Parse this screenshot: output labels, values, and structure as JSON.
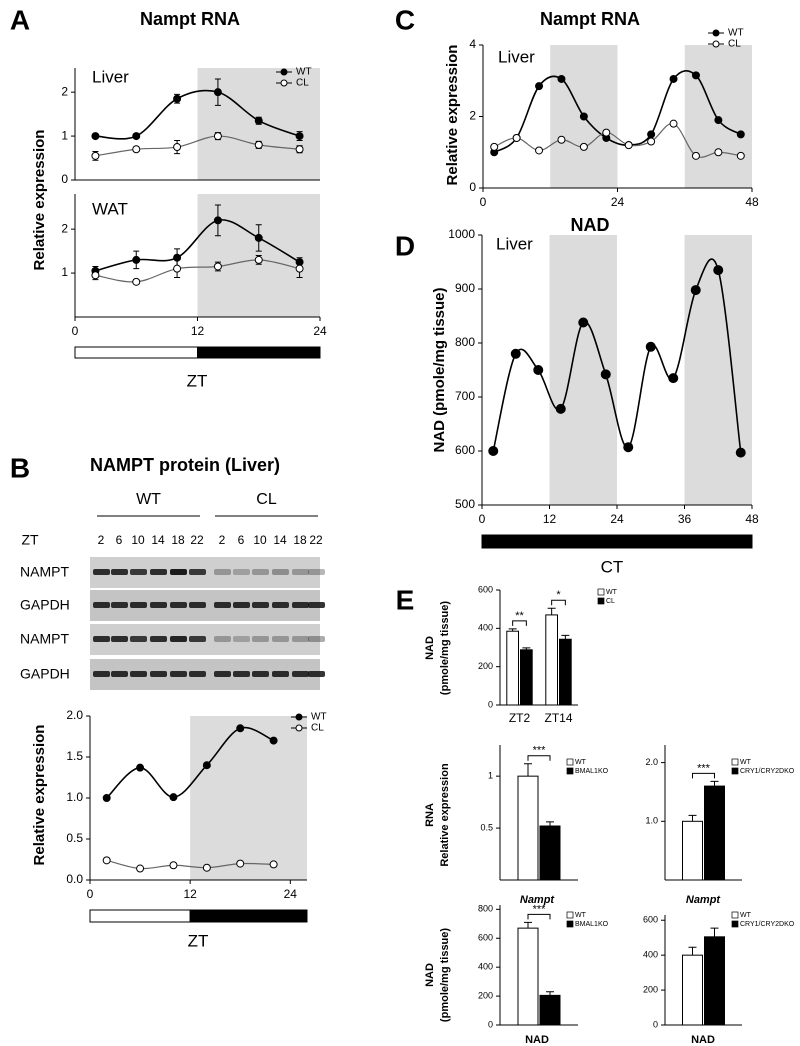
{
  "chart_data": [
    {
      "type": "line",
      "panel": "A",
      "title": "Nampt RNA",
      "annotation": "Liver",
      "ylabel": "Relative expression",
      "x": [
        2,
        6,
        10,
        14,
        18,
        22
      ],
      "xlim": [
        0,
        24
      ],
      "ylim": [
        0,
        2.55
      ],
      "yticks": [
        0,
        1,
        2
      ],
      "shade": [
        [
          12,
          24
        ]
      ],
      "smooth": true,
      "series": [
        {
          "name": "WT",
          "color": "#000000",
          "values": [
            1.0,
            1.0,
            1.85,
            2.0,
            1.35,
            1.0
          ],
          "errors": [
            0.05,
            0.05,
            0.1,
            0.3,
            0.08,
            0.1
          ]
        },
        {
          "name": "CL",
          "color": "#ffffff",
          "values": [
            0.55,
            0.7,
            0.75,
            1.0,
            0.8,
            0.7
          ],
          "errors": [
            0.1,
            0.05,
            0.15,
            0.08,
            0.08,
            0.08
          ]
        }
      ]
    },
    {
      "type": "line",
      "annotation": "WAT",
      "xlabel": "ZT",
      "x": [
        2,
        6,
        10,
        14,
        18,
        22
      ],
      "xlim": [
        0,
        24
      ],
      "xticks": [
        0,
        12,
        24
      ],
      "ylim": [
        0,
        2.8
      ],
      "yticks": [
        1,
        2
      ],
      "shade": [
        [
          12,
          24
        ]
      ],
      "light_bar": [
        [
          0,
          12
        ]
      ],
      "dark_bar": [
        [
          12,
          24
        ]
      ],
      "smooth": true,
      "series": [
        {
          "color": "#000000",
          "values": [
            1.05,
            1.3,
            1.35,
            2.2,
            1.8,
            1.25
          ],
          "errors": [
            0.1,
            0.2,
            0.2,
            0.35,
            0.3,
            0.1
          ]
        },
        {
          "color": "#ffffff",
          "values": [
            0.95,
            0.8,
            1.1,
            1.15,
            1.3,
            1.1
          ],
          "errors": [
            0.1,
            0.05,
            0.2,
            0.1,
            0.1,
            0.2
          ]
        }
      ]
    },
    {
      "type": "line",
      "ylabel": "Relative expression",
      "xlabel": "ZT",
      "x": [
        2,
        6,
        10,
        14,
        18,
        22
      ],
      "xlim": [
        0,
        26
      ],
      "xticks": [
        0,
        12,
        24
      ],
      "ylim": [
        0,
        2
      ],
      "yticks": [
        {
          "value": 0,
          "label": "0.0"
        },
        {
          "value": 0.5,
          "label": "0.5"
        },
        {
          "value": 1,
          "label": "1.0"
        },
        {
          "value": 1.5,
          "label": "1.5"
        },
        {
          "value": 2,
          "label": "2.0"
        }
      ],
      "shade": [
        [
          12,
          26
        ]
      ],
      "light_bar": [
        [
          0,
          12
        ]
      ],
      "dark_bar": [
        [
          12,
          26
        ]
      ],
      "smooth": true,
      "series": [
        {
          "name": "WT",
          "color": "#000000",
          "values": [
            1.0,
            1.37,
            1.01,
            1.4,
            1.85,
            1.7
          ]
        },
        {
          "name": "CL",
          "color": "#ffffff",
          "values": [
            0.24,
            0.14,
            0.18,
            0.15,
            0.2,
            0.19
          ]
        }
      ]
    },
    {
      "type": "line",
      "panel": "C",
      "title": "Nampt RNA",
      "annotation": "Liver",
      "ylabel": "Relative expression",
      "x": [
        2,
        6,
        10,
        14,
        18,
        22,
        26,
        30,
        34,
        38,
        42,
        46
      ],
      "xlim": [
        0,
        48
      ],
      "xticks": [
        0,
        24,
        48
      ],
      "ylim": [
        0,
        4
      ],
      "yticks": [
        0,
        2,
        4
      ],
      "shade": [
        [
          12,
          24
        ],
        [
          36,
          48
        ]
      ],
      "smooth": true,
      "series": [
        {
          "name": "WT",
          "color": "#000000",
          "values": [
            1.0,
            1.4,
            2.85,
            3.05,
            2.0,
            1.4,
            1.2,
            1.5,
            3.05,
            3.15,
            1.9,
            1.5
          ]
        },
        {
          "name": "CL",
          "color": "#ffffff",
          "values": [
            1.15,
            1.4,
            1.05,
            1.35,
            1.15,
            1.55,
            1.2,
            1.3,
            1.8,
            0.9,
            1.0,
            0.9
          ]
        }
      ]
    },
    {
      "type": "line",
      "panel": "D",
      "title": "NAD",
      "annotation": "Liver",
      "ylabel": "NAD (pmole/mg tissue)",
      "xlabel": "CT",
      "x": [
        2,
        6,
        10,
        14,
        18,
        22,
        26,
        30,
        34,
        38,
        42,
        46
      ],
      "xlim": [
        0,
        48
      ],
      "xticks": [
        0,
        12,
        24,
        36,
        48
      ],
      "ylim": [
        500,
        1000
      ],
      "yticks": [
        500,
        600,
        700,
        800,
        900,
        1000
      ],
      "shade": [
        [
          12,
          24
        ],
        [
          36,
          48
        ]
      ],
      "dark_bar": [
        [
          0,
          48
        ]
      ],
      "smooth": true,
      "color": "#000000",
      "values": [
        600,
        780,
        750,
        678,
        838,
        742,
        607,
        793,
        735,
        898,
        935,
        597
      ]
    },
    {
      "type": "bar",
      "panel": "E",
      "ylabel": [
        "NAD",
        "(pmole/mg tissue)"
      ],
      "categories": [
        "ZT2",
        "ZT14"
      ],
      "ylim": [
        0,
        600
      ],
      "yticks": [
        0,
        200,
        400,
        600
      ],
      "significance": [
        "**",
        "*"
      ],
      "series": [
        {
          "name": "WT",
          "color": "#ffffff",
          "values": [
            385,
            470
          ],
          "errors": [
            12,
            35
          ]
        },
        {
          "name": "CL",
          "color": "#000000",
          "values": [
            288,
            343
          ],
          "errors": [
            10,
            20
          ]
        }
      ]
    },
    {
      "type": "bar",
      "ylabel": [
        "RNA",
        "Relative expression"
      ],
      "xlabel": "Nampt",
      "categories": [
        null
      ],
      "ylim": [
        0,
        1.3
      ],
      "yticks": [
        0.5,
        1
      ],
      "significance": [
        "***"
      ],
      "series": [
        {
          "name": "WT",
          "color": "#ffffff",
          "values": [
            1.0
          ],
          "errors": [
            0.12
          ]
        },
        {
          "name": "BMAL1KO",
          "color": "#000000",
          "values": [
            0.52
          ],
          "errors": [
            0.04
          ]
        }
      ]
    },
    {
      "type": "bar",
      "xlabel": "Nampt",
      "categories": [
        null
      ],
      "ylim": [
        0,
        2.3
      ],
      "yticks": [
        {
          "value": 1,
          "label": "1.0"
        },
        {
          "value": 2,
          "label": "2.0"
        }
      ],
      "significance": [
        "***"
      ],
      "series": [
        {
          "name": "WT",
          "color": "#ffffff",
          "values": [
            1.0
          ],
          "errors": [
            0.1
          ]
        },
        {
          "name": "CRY1/CRY2DKO",
          "color": "#000000",
          "values": [
            1.6
          ],
          "errors": [
            0.08
          ]
        }
      ]
    },
    {
      "type": "bar",
      "ylabel": [
        "NAD",
        "(pmole/mg tissue)"
      ],
      "xlabel": "NAD",
      "categories": [
        null
      ],
      "ylim": [
        0,
        830
      ],
      "yticks": [
        0,
        200,
        400,
        600,
        800
      ],
      "significance": [
        "***"
      ],
      "series": [
        {
          "name": "WT",
          "color": "#ffffff",
          "values": [
            670
          ],
          "errors": [
            40
          ]
        },
        {
          "name": "BMAL1KO",
          "color": "#000000",
          "values": [
            205
          ],
          "errors": [
            25
          ]
        }
      ]
    },
    {
      "type": "bar",
      "xlabel": "NAD",
      "categories": [
        null
      ],
      "ylim": [
        0,
        630
      ],
      "yticks": [
        0,
        200,
        400,
        600
      ],
      "series": [
        {
          "name": "WT",
          "color": "#ffffff",
          "values": [
            400
          ],
          "errors": [
            45
          ]
        },
        {
          "name": "CRY1/CRY2DKO",
          "color": "#000000",
          "values": [
            505
          ],
          "errors": [
            50
          ]
        }
      ]
    }
  ],
  "blot": {
    "panel": "B",
    "title": "NAMPT protein (Liver)",
    "groups": [
      "WT",
      "CL"
    ],
    "lane_label": "ZT",
    "lanes": [
      2,
      6,
      10,
      14,
      18,
      22
    ],
    "rows": [
      "NAMPT",
      "GAPDH",
      "NAMPT",
      "GAPDH"
    ]
  }
}
